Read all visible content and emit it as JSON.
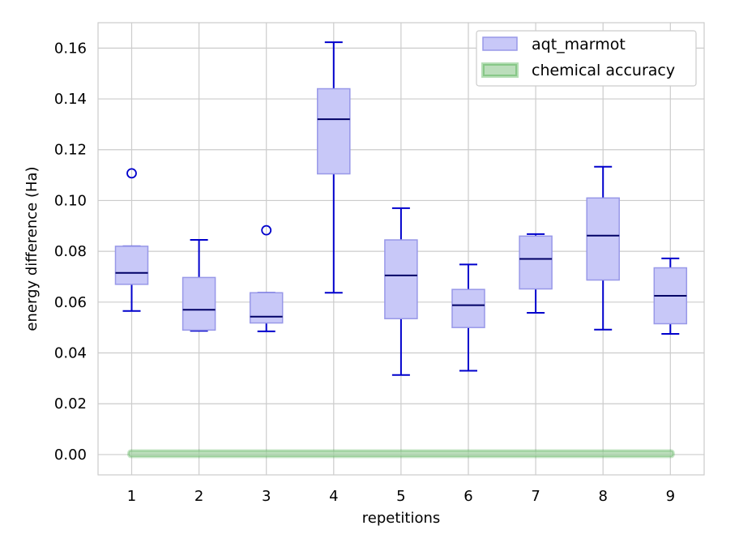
{
  "chart_data": {
    "type": "box",
    "xlabel": "repetitions",
    "ylabel": "energy difference (Ha)",
    "ylim": [
      -0.008,
      0.17
    ],
    "yticks": [
      "0.00",
      "0.02",
      "0.04",
      "0.06",
      "0.08",
      "0.10",
      "0.12",
      "0.14",
      "0.16"
    ],
    "categories": [
      "1",
      "2",
      "3",
      "4",
      "5",
      "6",
      "7",
      "8",
      "9"
    ],
    "grid": true,
    "legend_position": "top-right",
    "series": [
      {
        "name": "aqt_marmot",
        "color": "#0000cc",
        "box_fill": "#c8c8f8",
        "box_edge": "#9898e8",
        "boxes": [
          {
            "x": "1",
            "whislo": 0.0565,
            "q1": 0.067,
            "med": 0.0715,
            "q3": 0.082,
            "whishi": 0.082,
            "fliers": [
              0.1107
            ]
          },
          {
            "x": "2",
            "whislo": 0.0487,
            "q1": 0.049,
            "med": 0.057,
            "q3": 0.0697,
            "whishi": 0.0845,
            "fliers": []
          },
          {
            "x": "3",
            "whislo": 0.0485,
            "q1": 0.0518,
            "med": 0.0543,
            "q3": 0.0637,
            "whishi": 0.0637,
            "fliers": [
              0.0883
            ]
          },
          {
            "x": "4",
            "whislo": 0.0637,
            "q1": 0.1105,
            "med": 0.132,
            "q3": 0.144,
            "whishi": 0.1623,
            "fliers": []
          },
          {
            "x": "5",
            "whislo": 0.0313,
            "q1": 0.0535,
            "med": 0.0705,
            "q3": 0.0845,
            "whishi": 0.097,
            "fliers": []
          },
          {
            "x": "6",
            "whislo": 0.033,
            "q1": 0.05,
            "med": 0.0588,
            "q3": 0.065,
            "whishi": 0.0748,
            "fliers": []
          },
          {
            "x": "7",
            "whislo": 0.0558,
            "q1": 0.0652,
            "med": 0.077,
            "q3": 0.086,
            "whishi": 0.0868,
            "fliers": []
          },
          {
            "x": "8",
            "whislo": 0.0492,
            "q1": 0.0687,
            "med": 0.0862,
            "q3": 0.101,
            "whishi": 0.1133,
            "fliers": []
          },
          {
            "x": "9",
            "whislo": 0.0475,
            "q1": 0.0515,
            "med": 0.0625,
            "q3": 0.0735,
            "whishi": 0.0772,
            "fliers": []
          }
        ]
      },
      {
        "name": "chemical accuracy",
        "color": "#9ed09e",
        "edge": "#2ca02c",
        "value": 0.0,
        "x_range": [
          "1",
          "9"
        ]
      }
    ]
  }
}
